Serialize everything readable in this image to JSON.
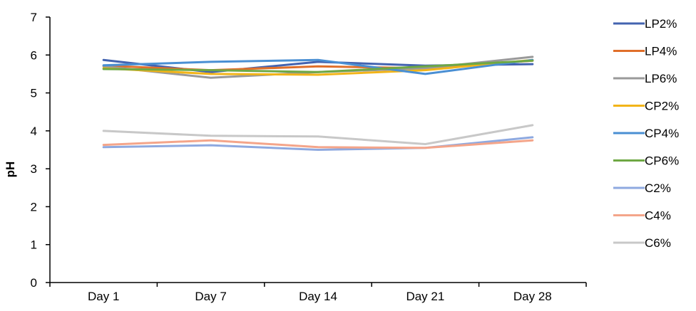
{
  "chart_data": {
    "type": "line",
    "title": "",
    "xlabel": "",
    "ylabel": "pH",
    "ylim": [
      0,
      7
    ],
    "yticks": [
      0,
      1,
      2,
      3,
      4,
      5,
      6,
      7
    ],
    "grid": false,
    "legend_position": "right",
    "categories": [
      "Day 1",
      "Day 7",
      "Day 14",
      "Day 21",
      "Day 28"
    ],
    "series": [
      {
        "name": "LP2%",
        "color": "#4363b0",
        "values": [
          5.87,
          5.55,
          5.82,
          5.72,
          5.76
        ]
      },
      {
        "name": "LP4%",
        "color": "#e06f2a",
        "values": [
          5.72,
          5.6,
          5.7,
          5.65,
          5.85
        ]
      },
      {
        "name": "LP6%",
        "color": "#999999",
        "values": [
          5.7,
          5.4,
          5.55,
          5.65,
          5.95
        ]
      },
      {
        "name": "CP2%",
        "color": "#f2b418",
        "values": [
          5.65,
          5.5,
          5.48,
          5.6,
          5.87
        ]
      },
      {
        "name": "CP4%",
        "color": "#4a8fd3",
        "values": [
          5.73,
          5.82,
          5.87,
          5.5,
          5.87
        ]
      },
      {
        "name": "CP6%",
        "color": "#6ea844",
        "values": [
          5.63,
          5.6,
          5.55,
          5.7,
          5.85
        ]
      },
      {
        "name": "C2%",
        "color": "#8ea9e0",
        "values": [
          3.57,
          3.62,
          3.5,
          3.55,
          3.83
        ]
      },
      {
        "name": "C4%",
        "color": "#f4a58a",
        "values": [
          3.63,
          3.75,
          3.57,
          3.55,
          3.75
        ]
      },
      {
        "name": "C6%",
        "color": "#c8c8c8",
        "values": [
          4.0,
          3.87,
          3.85,
          3.65,
          4.15
        ]
      }
    ]
  }
}
